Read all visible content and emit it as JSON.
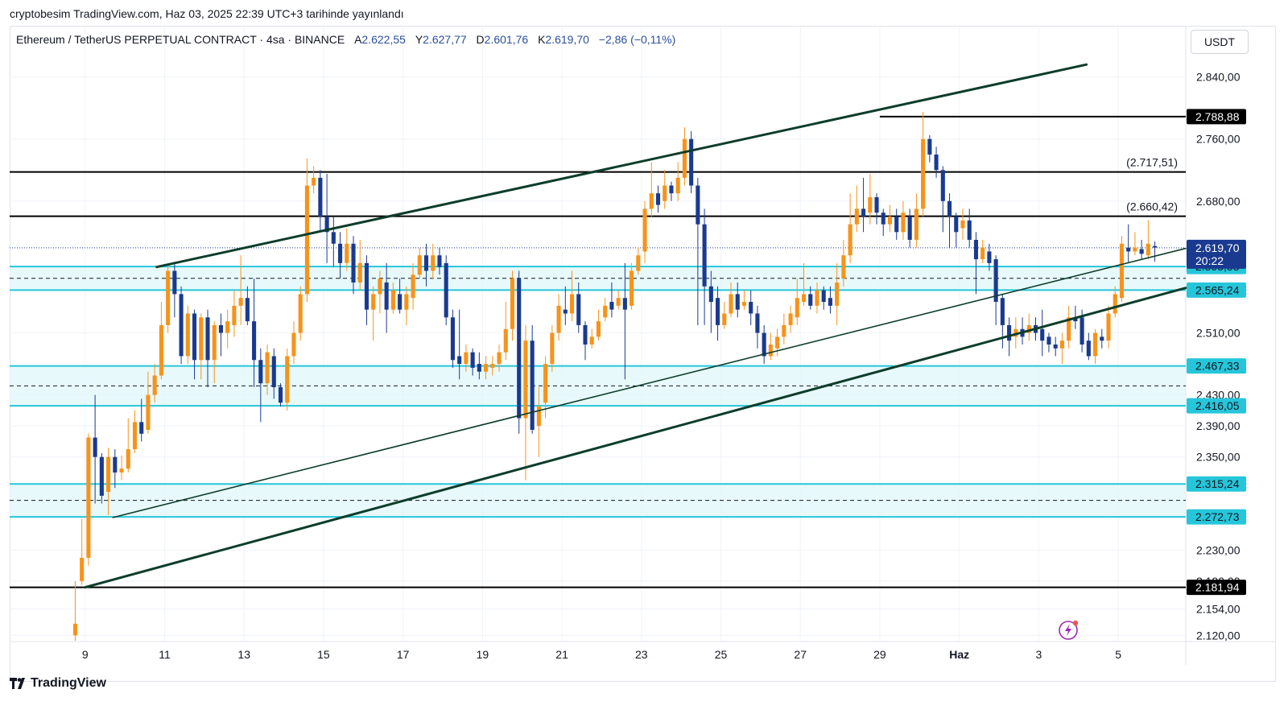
{
  "header": {
    "published": "cryptobesim TradingView.com, Haz 03, 2025 22:39 UTC+3 tarihinde yayınlandı"
  },
  "legend": {
    "symbol": "Ethereum / TetherUS PERPETUAL CONTRACT · 4sa · BINANCE",
    "open_label": "A",
    "open": "2.622,55",
    "high_label": "Y",
    "high": "2.627,77",
    "low_label": "D",
    "low": "2.601,76",
    "close_label": "K",
    "close": "2.619,70",
    "change": "−2,86 (−0,11%)"
  },
  "currency": "USDT",
  "footer": {
    "brand": "TradingView"
  },
  "icons": {
    "logo": "tradingview-logo-icon",
    "flash": "flash-icon"
  },
  "colors": {
    "up": "#f7931a",
    "down": "#1a3a8f",
    "trend": "#0d3d2a",
    "zone_line": "#26c6da",
    "zone_fill": "#e0f7fa",
    "level_line": "#000000",
    "price_tag": "#1a3a8f"
  },
  "chart_data": {
    "type": "candlestick",
    "title": "",
    "x_ticks": [
      "9",
      "11",
      "13",
      "15",
      "17",
      "19",
      "21",
      "23",
      "25",
      "27",
      "29",
      "Haz",
      "3",
      "5"
    ],
    "x_tick_pos": [
      9,
      11,
      13,
      15,
      17,
      19,
      21,
      23,
      25,
      27,
      29,
      31,
      33,
      35
    ],
    "y_ticks": [
      "2.840,00",
      "2.760,00",
      "2.680,00",
      "2.510,00",
      "2.430,00",
      "2.390,00",
      "2.350,00",
      "2.230,00",
      "2.190,00",
      "2.154,00",
      "2.120,00"
    ],
    "y_tick_vals": [
      2840,
      2760,
      2680,
      2510,
      2430,
      2390,
      2350,
      2230,
      2190,
      2154,
      2120
    ],
    "ylim": [
      2112,
      2905
    ],
    "xlim": [
      7.1,
      36.7
    ],
    "levels_black": [
      {
        "value": 2788.88,
        "label": "2.788,88",
        "tag": "box",
        "x_from": 29.0
      },
      {
        "value": 2717.51,
        "label": "(2.717,51)",
        "tag": "text",
        "x_from": 7.1
      },
      {
        "value": 2660.42,
        "label": "(2.660,42)",
        "tag": "text",
        "x_from": 7.1
      },
      {
        "value": 2181.94,
        "label": "2.181,94",
        "tag": "box",
        "x_from": 7.1
      }
    ],
    "zones": [
      {
        "top": 2595.53,
        "bottom": 2565.24,
        "top_label": "2.595,53",
        "bottom_label": "2.565,24"
      },
      {
        "top": 2467.33,
        "bottom": 2416.05,
        "top_label": "2.467,33",
        "bottom_label": "2.416,05"
      },
      {
        "top": 2315.24,
        "bottom": 2272.73,
        "top_label": "2.315,24",
        "bottom_label": "2.272,73"
      }
    ],
    "current_price": {
      "value": 2619.7,
      "label": "2.619,70",
      "countdown": "20:22"
    },
    "trend_lines": [
      {
        "x1": 10.8,
        "y1": 2595,
        "x2": 34.2,
        "y2": 2856,
        "width": 3
      },
      {
        "x1": 9.7,
        "y1": 2272,
        "x2": 36.7,
        "y2": 2619,
        "width": 1.6
      },
      {
        "x1": 9.0,
        "y1": 2182,
        "x2": 36.7,
        "y2": 2568,
        "width": 3
      }
    ],
    "candles_start_x": 8.75,
    "candles_step_x": 0.1667,
    "candles": [
      [
        2120,
        2135,
        2113,
        2190
      ],
      [
        2190,
        2220,
        2185,
        2270
      ],
      [
        2220,
        2375,
        2210,
        2380
      ],
      [
        2375,
        2350,
        2290,
        2430
      ],
      [
        2350,
        2300,
        2290,
        2355
      ],
      [
        2305,
        2350,
        2275,
        2362
      ],
      [
        2350,
        2330,
        2310,
        2360
      ],
      [
        2330,
        2335,
        2320,
        2352
      ],
      [
        2335,
        2360,
        2330,
        2400
      ],
      [
        2360,
        2395,
        2355,
        2410
      ],
      [
        2395,
        2380,
        2370,
        2425
      ],
      [
        2385,
        2430,
        2380,
        2460
      ],
      [
        2430,
        2455,
        2420,
        2470
      ],
      [
        2455,
        2520,
        2450,
        2550
      ],
      [
        2520,
        2590,
        2510,
        2598
      ],
      [
        2590,
        2560,
        2530,
        2600
      ],
      [
        2560,
        2480,
        2470,
        2570
      ],
      [
        2480,
        2535,
        2470,
        2545
      ],
      [
        2535,
        2475,
        2450,
        2540
      ],
      [
        2475,
        2530,
        2450,
        2535
      ],
      [
        2530,
        2475,
        2440,
        2540
      ],
      [
        2475,
        2520,
        2445,
        2525
      ],
      [
        2520,
        2510,
        2480,
        2535
      ],
      [
        2510,
        2525,
        2490,
        2540
      ],
      [
        2520,
        2545,
        2505,
        2565
      ],
      [
        2545,
        2555,
        2520,
        2610
      ],
      [
        2555,
        2525,
        2520,
        2570
      ],
      [
        2525,
        2475,
        2440,
        2580
      ],
      [
        2475,
        2445,
        2395,
        2490
      ],
      [
        2445,
        2485,
        2430,
        2495
      ],
      [
        2480,
        2440,
        2425,
        2490
      ],
      [
        2440,
        2420,
        2415,
        2445
      ],
      [
        2420,
        2480,
        2410,
        2490
      ],
      [
        2480,
        2510,
        2470,
        2525
      ],
      [
        2510,
        2560,
        2500,
        2570
      ],
      [
        2560,
        2700,
        2550,
        2735
      ],
      [
        2700,
        2710,
        2690,
        2725
      ],
      [
        2710,
        2660,
        2640,
        2720
      ],
      [
        2660,
        2640,
        2600,
        2715
      ],
      [
        2640,
        2625,
        2595,
        2660
      ],
      [
        2625,
        2600,
        2580,
        2640
      ],
      [
        2600,
        2625,
        2590,
        2645
      ],
      [
        2625,
        2575,
        2560,
        2635
      ],
      [
        2575,
        2600,
        2565,
        2630
      ],
      [
        2600,
        2540,
        2520,
        2610
      ],
      [
        2540,
        2560,
        2500,
        2570
      ],
      [
        2560,
        2580,
        2535,
        2590
      ],
      [
        2575,
        2540,
        2510,
        2600
      ],
      [
        2540,
        2565,
        2535,
        2575
      ],
      [
        2560,
        2540,
        2535,
        2580
      ],
      [
        2540,
        2560,
        2520,
        2570
      ],
      [
        2555,
        2585,
        2540,
        2600
      ],
      [
        2585,
        2610,
        2580,
        2620
      ],
      [
        2610,
        2590,
        2570,
        2625
      ],
      [
        2590,
        2610,
        2580,
        2625
      ],
      [
        2610,
        2595,
        2585,
        2620
      ],
      [
        2600,
        2530,
        2520,
        2610
      ],
      [
        2530,
        2475,
        2465,
        2540
      ],
      [
        2480,
        2470,
        2450,
        2540
      ],
      [
        2470,
        2485,
        2460,
        2495
      ],
      [
        2485,
        2465,
        2455,
        2490
      ],
      [
        2470,
        2460,
        2450,
        2485
      ],
      [
        2460,
        2470,
        2450,
        2480
      ],
      [
        2465,
        2470,
        2455,
        2480
      ],
      [
        2470,
        2485,
        2460,
        2495
      ],
      [
        2485,
        2515,
        2475,
        2550
      ],
      [
        2515,
        2580,
        2500,
        2590
      ],
      [
        2580,
        2400,
        2380,
        2590
      ],
      [
        2400,
        2500,
        2320,
        2520
      ],
      [
        2500,
        2385,
        2380,
        2520
      ],
      [
        2390,
        2415,
        2350,
        2440
      ],
      [
        2420,
        2470,
        2400,
        2480
      ],
      [
        2470,
        2510,
        2460,
        2520
      ],
      [
        2510,
        2545,
        2500,
        2560
      ],
      [
        2540,
        2535,
        2520,
        2570
      ],
      [
        2535,
        2560,
        2525,
        2590
      ],
      [
        2560,
        2520,
        2510,
        2575
      ],
      [
        2520,
        2495,
        2475,
        2525
      ],
      [
        2495,
        2505,
        2490,
        2515
      ],
      [
        2505,
        2525,
        2500,
        2540
      ],
      [
        2530,
        2545,
        2525,
        2555
      ],
      [
        2550,
        2540,
        2530,
        2575
      ],
      [
        2545,
        2555,
        2540,
        2565
      ],
      [
        2555,
        2540,
        2450,
        2600
      ],
      [
        2545,
        2590,
        2540,
        2600
      ],
      [
        2590,
        2610,
        2585,
        2620
      ],
      [
        2615,
        2670,
        2600,
        2680
      ],
      [
        2670,
        2690,
        2660,
        2730
      ],
      [
        2690,
        2675,
        2665,
        2700
      ],
      [
        2680,
        2700,
        2670,
        2720
      ],
      [
        2700,
        2690,
        2680,
        2705
      ],
      [
        2690,
        2710,
        2680,
        2730
      ],
      [
        2710,
        2760,
        2700,
        2775
      ],
      [
        2760,
        2700,
        2690,
        2770
      ],
      [
        2700,
        2650,
        2520,
        2710
      ],
      [
        2650,
        2570,
        2520,
        2670
      ],
      [
        2570,
        2550,
        2510,
        2590
      ],
      [
        2555,
        2520,
        2500,
        2570
      ],
      [
        2520,
        2535,
        2515,
        2550
      ],
      [
        2535,
        2560,
        2530,
        2575
      ],
      [
        2560,
        2540,
        2530,
        2575
      ],
      [
        2545,
        2550,
        2540,
        2565
      ],
      [
        2550,
        2535,
        2520,
        2565
      ],
      [
        2535,
        2510,
        2490,
        2545
      ],
      [
        2510,
        2480,
        2470,
        2520
      ],
      [
        2480,
        2495,
        2475,
        2510
      ],
      [
        2490,
        2505,
        2480,
        2515
      ],
      [
        2505,
        2520,
        2495,
        2535
      ],
      [
        2520,
        2535,
        2510,
        2545
      ],
      [
        2530,
        2555,
        2520,
        2580
      ],
      [
        2550,
        2560,
        2545,
        2600
      ],
      [
        2560,
        2545,
        2540,
        2570
      ],
      [
        2545,
        2565,
        2535,
        2575
      ],
      [
        2565,
        2550,
        2540,
        2570
      ],
      [
        2555,
        2545,
        2535,
        2570
      ],
      [
        2545,
        2575,
        2520,
        2600
      ],
      [
        2580,
        2610,
        2570,
        2630
      ],
      [
        2610,
        2650,
        2600,
        2690
      ],
      [
        2650,
        2670,
        2640,
        2700
      ],
      [
        2670,
        2660,
        2640,
        2710
      ],
      [
        2665,
        2685,
        2650,
        2715
      ],
      [
        2685,
        2665,
        2650,
        2690
      ],
      [
        2665,
        2650,
        2635,
        2670
      ],
      [
        2650,
        2660,
        2640,
        2675
      ],
      [
        2660,
        2640,
        2630,
        2670
      ],
      [
        2640,
        2665,
        2630,
        2680
      ],
      [
        2660,
        2630,
        2620,
        2670
      ],
      [
        2630,
        2670,
        2620,
        2690
      ],
      [
        2670,
        2760,
        2660,
        2795
      ],
      [
        2760,
        2740,
        2730,
        2765
      ],
      [
        2740,
        2720,
        2710,
        2750
      ],
      [
        2720,
        2680,
        2640,
        2725
      ],
      [
        2680,
        2660,
        2620,
        2690
      ],
      [
        2660,
        2640,
        2620,
        2665
      ],
      [
        2645,
        2655,
        2630,
        2670
      ],
      [
        2655,
        2630,
        2620,
        2670
      ],
      [
        2630,
        2605,
        2560,
        2640
      ],
      [
        2605,
        2620,
        2600,
        2630
      ],
      [
        2615,
        2600,
        2590,
        2625
      ],
      [
        2605,
        2550,
        2520,
        2610
      ],
      [
        2555,
        2520,
        2490,
        2560
      ],
      [
        2520,
        2500,
        2480,
        2530
      ],
      [
        2505,
        2515,
        2490,
        2530
      ],
      [
        2515,
        2505,
        2495,
        2530
      ],
      [
        2510,
        2520,
        2500,
        2535
      ],
      [
        2520,
        2510,
        2500,
        2530
      ],
      [
        2515,
        2500,
        2480,
        2540
      ],
      [
        2505,
        2495,
        2485,
        2510
      ],
      [
        2495,
        2490,
        2480,
        2505
      ],
      [
        2490,
        2500,
        2470,
        2510
      ],
      [
        2500,
        2530,
        2490,
        2545
      ],
      [
        2530,
        2525,
        2515,
        2545
      ],
      [
        2530,
        2495,
        2485,
        2540
      ],
      [
        2500,
        2480,
        2475,
        2510
      ],
      [
        2480,
        2510,
        2470,
        2515
      ],
      [
        2505,
        2500,
        2490,
        2515
      ],
      [
        2500,
        2535,
        2490,
        2545
      ],
      [
        2535,
        2560,
        2530,
        2570
      ],
      [
        2555,
        2625,
        2550,
        2635
      ],
      [
        2620,
        2615,
        2600,
        2650
      ],
      [
        2615,
        2620,
        2610,
        2640
      ],
      [
        2618,
        2612,
        2605,
        2630
      ],
      [
        2610,
        2625,
        2605,
        2655
      ],
      [
        2622,
        2620,
        2602,
        2628
      ]
    ]
  }
}
